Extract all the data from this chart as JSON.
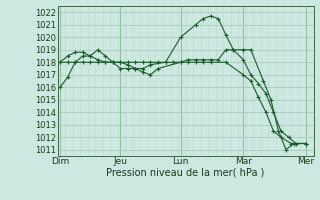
{
  "background_color": "#cce8e0",
  "grid_color_major": "#aaccbb",
  "grid_color_minor": "#bbddcc",
  "line_color": "#1a5c2a",
  "marker_color": "#1a5c2a",
  "xlabel": "Pression niveau de la mer( hPa )",
  "ylim": [
    1010.5,
    1022.5
  ],
  "yticks": [
    1011,
    1012,
    1013,
    1014,
    1015,
    1016,
    1017,
    1018,
    1019,
    1020,
    1021,
    1022
  ],
  "xlim": [
    0,
    204
  ],
  "day_positions": [
    2,
    50,
    98,
    148,
    198
  ],
  "day_labels": [
    "Dim",
    "Jeu",
    "Lun",
    "Mar",
    "Mer"
  ],
  "vline_positions": [
    2,
    50,
    98,
    148,
    198
  ],
  "series": [
    {
      "x": [
        2,
        8,
        14,
        20,
        26,
        32,
        38,
        44,
        50,
        56,
        62,
        68,
        74,
        86,
        98,
        110,
        116,
        122,
        128,
        134,
        140,
        148,
        154,
        160,
        166,
        172,
        178,
        184,
        190,
        198
      ],
      "y": [
        1016.0,
        1016.8,
        1018.0,
        1018.5,
        1018.5,
        1019.0,
        1018.5,
        1018.0,
        1017.5,
        1017.5,
        1017.5,
        1017.5,
        1017.8,
        1018.0,
        1020.0,
        1021.0,
        1021.5,
        1021.7,
        1021.5,
        1020.2,
        1019.0,
        1018.2,
        1017.0,
        1016.3,
        1015.5,
        1014.0,
        1012.5,
        1012.0,
        1011.5,
        1011.5
      ]
    },
    {
      "x": [
        2,
        8,
        14,
        20,
        26,
        32,
        38,
        44,
        50,
        56,
        62,
        68,
        74,
        80,
        86,
        92,
        98,
        104,
        110,
        116,
        122,
        134,
        148,
        154,
        160,
        166,
        172,
        178,
        186,
        198
      ],
      "y": [
        1018.0,
        1018.5,
        1018.8,
        1018.8,
        1018.5,
        1018.2,
        1018.0,
        1018.0,
        1018.0,
        1018.0,
        1018.0,
        1018.0,
        1018.0,
        1018.0,
        1018.0,
        1018.0,
        1018.0,
        1018.0,
        1018.0,
        1018.0,
        1018.0,
        1018.0,
        1017.0,
        1016.5,
        1015.2,
        1014.0,
        1012.5,
        1012.0,
        1011.5,
        1011.5
      ]
    },
    {
      "x": [
        2,
        8,
        14,
        20,
        26,
        32,
        38,
        44,
        50,
        56,
        62,
        68,
        74,
        80,
        98,
        104,
        110,
        116,
        122,
        128,
        134,
        140,
        148,
        154,
        164,
        170,
        176,
        182,
        188,
        198
      ],
      "y": [
        1018.0,
        1018.0,
        1018.0,
        1018.0,
        1018.0,
        1018.0,
        1018.0,
        1018.0,
        1018.0,
        1017.8,
        1017.5,
        1017.2,
        1017.0,
        1017.5,
        1018.0,
        1018.2,
        1018.2,
        1018.2,
        1018.2,
        1018.2,
        1019.0,
        1019.0,
        1019.0,
        1019.0,
        1016.5,
        1015.0,
        1012.5,
        1011.0,
        1011.5,
        1011.5
      ]
    }
  ]
}
